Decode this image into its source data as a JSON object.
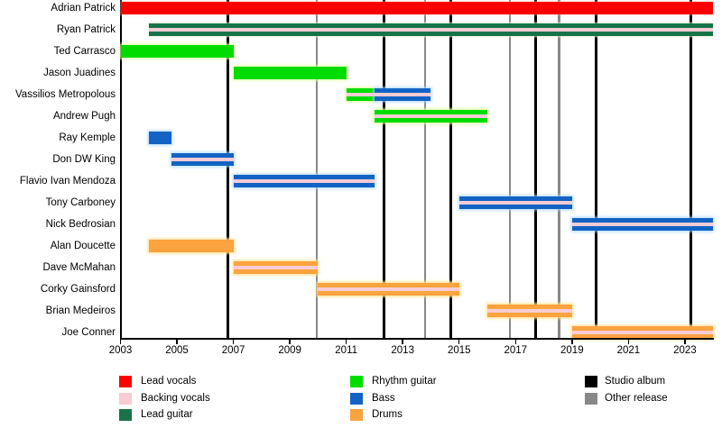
{
  "chart_data": {
    "type": "timeline",
    "description": "Band members timeline (Gantt-style) with instrument roles and release markers",
    "x_axis": {
      "start": 2003,
      "end": 2024,
      "tick_labels": [
        2003,
        2005,
        2007,
        2009,
        2011,
        2013,
        2015,
        2017,
        2019,
        2021,
        2023
      ]
    },
    "members": [
      {
        "name": "Adrian Patrick",
        "bars": [
          {
            "start": 2003.0,
            "end": 2024.0,
            "role": "lead_vocals",
            "backing_vocals": false
          }
        ]
      },
      {
        "name": "Ryan Patrick",
        "bars": [
          {
            "start": 2004.0,
            "end": 2024.0,
            "role": "lead_guitar",
            "backing_vocals": true
          }
        ]
      },
      {
        "name": "Ted Carrasco",
        "bars": [
          {
            "start": 2003.0,
            "end": 2007.0,
            "role": "rhythm_guitar",
            "backing_vocals": false
          }
        ]
      },
      {
        "name": "Jason Juadines",
        "bars": [
          {
            "start": 2007.0,
            "end": 2011.0,
            "role": "rhythm_guitar",
            "backing_vocals": false
          }
        ]
      },
      {
        "name": "Vassilios Metropolous",
        "bars": [
          {
            "start": 2011.0,
            "end": 2012.0,
            "role": "rhythm_guitar",
            "backing_vocals": true
          },
          {
            "start": 2012.0,
            "end": 2014.0,
            "role": "bass",
            "backing_vocals": true
          }
        ]
      },
      {
        "name": "Andrew Pugh",
        "bars": [
          {
            "start": 2012.0,
            "end": 2016.0,
            "role": "rhythm_guitar",
            "backing_vocals": true
          }
        ]
      },
      {
        "name": "Ray Kemple",
        "bars": [
          {
            "start": 2004.0,
            "end": 2004.8,
            "role": "bass",
            "backing_vocals": false
          }
        ]
      },
      {
        "name": "Don DW King",
        "bars": [
          {
            "start": 2004.8,
            "end": 2007.0,
            "role": "bass",
            "backing_vocals": true
          }
        ]
      },
      {
        "name": "Flavio Ivan Mendoza",
        "bars": [
          {
            "start": 2007.0,
            "end": 2012.0,
            "role": "bass",
            "backing_vocals": true
          }
        ]
      },
      {
        "name": "Tony Carboney",
        "bars": [
          {
            "start": 2015.0,
            "end": 2019.0,
            "role": "bass",
            "backing_vocals": true
          }
        ]
      },
      {
        "name": "Nick Bedrosian",
        "bars": [
          {
            "start": 2019.0,
            "end": 2024.0,
            "role": "bass",
            "backing_vocals": true
          }
        ]
      },
      {
        "name": "Alan Doucette",
        "bars": [
          {
            "start": 2004.0,
            "end": 2007.0,
            "role": "drums",
            "backing_vocals": false
          }
        ]
      },
      {
        "name": "Dave McMahan",
        "bars": [
          {
            "start": 2007.0,
            "end": 2010.0,
            "role": "drums",
            "backing_vocals": true
          }
        ]
      },
      {
        "name": "Corky Gainsford",
        "bars": [
          {
            "start": 2010.0,
            "end": 2015.0,
            "role": "drums",
            "backing_vocals": true
          }
        ]
      },
      {
        "name": "Brian Medeiros",
        "bars": [
          {
            "start": 2016.0,
            "end": 2019.0,
            "role": "drums",
            "backing_vocals": true
          }
        ]
      },
      {
        "name": "Joe Conner",
        "bars": [
          {
            "start": 2019.0,
            "end": 2024.0,
            "role": "drums",
            "backing_vocals": true
          }
        ]
      }
    ],
    "events": {
      "studio_albums": [
        2006.8,
        2012.35,
        2014.7,
        2017.7,
        2019.85,
        2023.2
      ],
      "other_releases": [
        2009.95,
        2013.8,
        2016.8,
        2018.55
      ]
    }
  },
  "colors": {
    "lead_vocals": "#fb0000",
    "backing_vocals": "#f8ccd4",
    "lead_guitar": "#17744a",
    "rhythm_guitar": "#00dc00",
    "bass": "#1263c4",
    "drums": "#fba33e",
    "studio_album": "#000000",
    "other_release": "#888888"
  },
  "legend": {
    "columns": [
      [
        {
          "label": "Lead vocals",
          "key": "lead_vocals"
        },
        {
          "label": "Backing vocals",
          "key": "backing_vocals"
        },
        {
          "label": "Lead guitar",
          "key": "lead_guitar"
        }
      ],
      [
        {
          "label": "Rhythm guitar",
          "key": "rhythm_guitar"
        },
        {
          "label": "Bass",
          "key": "bass"
        },
        {
          "label": "Drums",
          "key": "drums"
        }
      ],
      [
        {
          "label": "Studio album",
          "key": "studio_album"
        },
        {
          "label": "Other release",
          "key": "other_release"
        }
      ]
    ]
  }
}
